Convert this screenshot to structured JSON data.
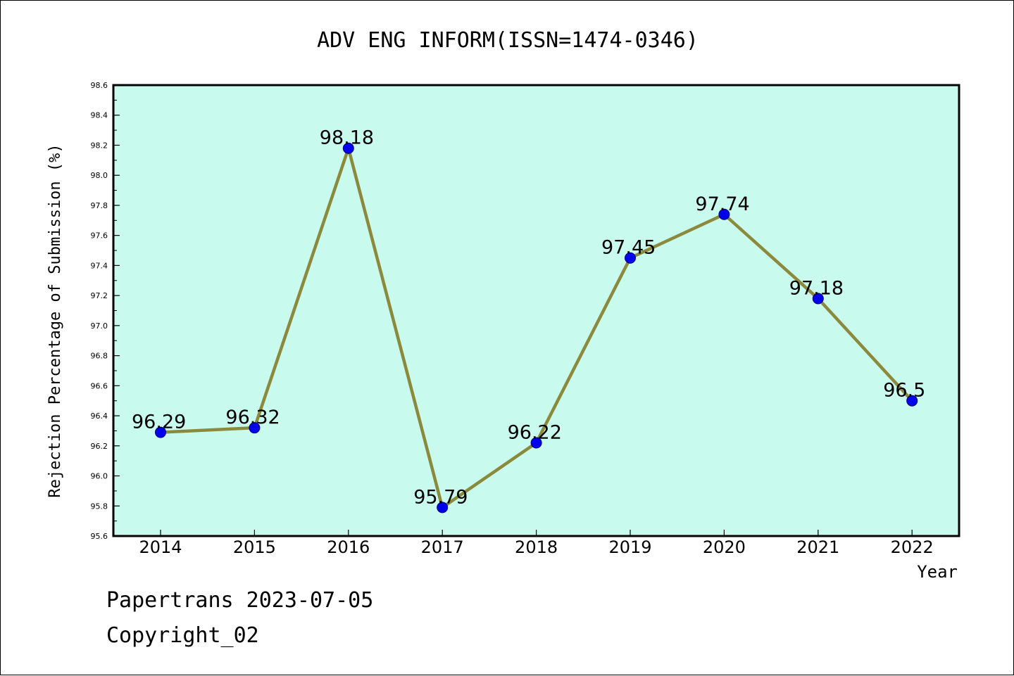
{
  "chart_data": {
    "type": "line",
    "title": "ADV ENG INFORM(ISSN=1474-0346)",
    "xlabel": "Year",
    "ylabel": "Rejection Percentage of Submission (%)",
    "categories": [
      "2014",
      "2015",
      "2016",
      "2017",
      "2018",
      "2019",
      "2020",
      "2021",
      "2022"
    ],
    "values": [
      96.29,
      96.32,
      98.18,
      95.79,
      96.22,
      97.45,
      97.74,
      97.18,
      96.5
    ],
    "data_labels": [
      "96.29",
      "96.32",
      "98.18",
      "95.79",
      "96.22",
      "97.45",
      "97.74",
      "97.18",
      "96.5"
    ],
    "ylim": [
      95.6,
      98.6
    ],
    "yticks": [
      "95.6",
      "95.8",
      "96.0",
      "96.2",
      "96.4",
      "96.6",
      "96.8",
      "97.0",
      "97.2",
      "97.4",
      "97.6",
      "97.8",
      "98.0",
      "98.2",
      "98.4",
      "98.6"
    ],
    "grid": false,
    "colors": {
      "plot_background": "#c8fbee",
      "line": "#8b8a3c",
      "marker": "#0000ee"
    }
  },
  "footer": {
    "line1": "Papertrans 2023-07-05",
    "line2": "Copyright_02"
  }
}
